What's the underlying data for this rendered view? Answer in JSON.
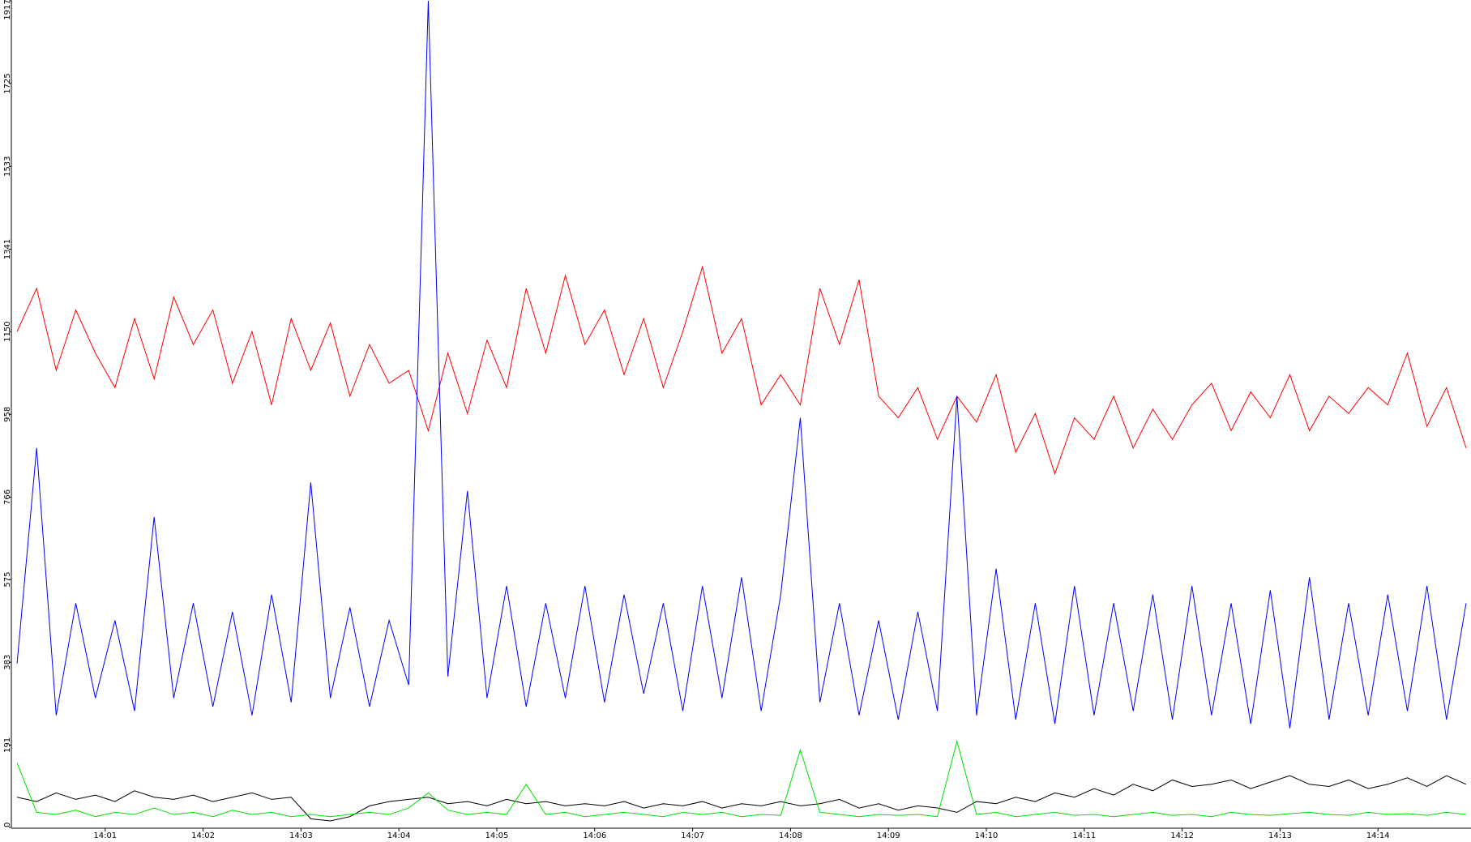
{
  "chart_data": {
    "type": "line",
    "x": [
      0.1,
      0.3,
      0.5,
      0.7,
      0.9,
      1.1,
      1.3,
      1.5,
      1.7,
      1.9,
      2.1,
      2.3,
      2.5,
      2.7,
      2.9,
      3.1,
      3.3,
      3.5,
      3.7,
      3.9,
      4.1,
      4.3,
      4.5,
      4.7,
      4.9,
      5.1,
      5.3,
      5.5,
      5.7,
      5.9,
      6.1,
      6.3,
      6.5,
      6.7,
      6.9,
      7.1,
      7.3,
      7.5,
      7.7,
      7.9,
      8.1,
      8.3,
      8.5,
      8.7,
      8.9,
      9.1,
      9.3,
      9.5,
      9.7,
      9.9,
      10.1,
      10.3,
      10.5,
      10.7,
      10.9,
      11.1,
      11.3,
      11.5,
      11.7,
      11.9,
      12.1,
      12.3,
      12.5,
      12.7,
      12.9,
      13.1,
      13.3,
      13.5,
      13.7,
      13.9,
      14.1,
      14.3,
      14.5,
      14.7,
      14.9
    ],
    "series": [
      {
        "color": "#ff0000",
        "values": [
          1150,
          1250,
          1060,
          1200,
          1100,
          1020,
          1180,
          1040,
          1230,
          1120,
          1200,
          1030,
          1150,
          980,
          1180,
          1060,
          1170,
          1000,
          1120,
          1030,
          1060,
          920,
          1100,
          960,
          1130,
          1020,
          1250,
          1100,
          1280,
          1120,
          1200,
          1050,
          1180,
          1020,
          1150,
          1300,
          1100,
          1180,
          980,
          1050,
          980,
          1250,
          1120,
          1270,
          1000,
          950,
          1020,
          900,
          1000,
          940,
          1050,
          870,
          960,
          820,
          950,
          900,
          1000,
          880,
          970,
          900,
          980,
          1030,
          920,
          1010,
          950,
          1050,
          920,
          1000,
          960,
          1020,
          980,
          1100,
          930,
          1020,
          880
        ]
      },
      {
        "color": "#0000ff",
        "values": [
          380,
          880,
          260,
          520,
          300,
          480,
          270,
          720,
          300,
          520,
          280,
          500,
          260,
          540,
          290,
          800,
          300,
          510,
          280,
          480,
          330,
          1917,
          350,
          780,
          300,
          560,
          280,
          520,
          300,
          560,
          290,
          540,
          310,
          520,
          270,
          560,
          300,
          580,
          270,
          540,
          950,
          290,
          520,
          260,
          480,
          250,
          500,
          270,
          1000,
          260,
          600,
          250,
          520,
          240,
          560,
          260,
          520,
          270,
          540,
          250,
          560,
          260,
          520,
          240,
          550,
          230,
          580,
          250,
          520,
          260,
          540,
          270,
          560,
          250,
          520
        ]
      },
      {
        "color": "#000000",
        "values": [
          70,
          60,
          80,
          65,
          75,
          60,
          85,
          70,
          65,
          75,
          60,
          70,
          80,
          65,
          70,
          20,
          15,
          25,
          50,
          60,
          65,
          70,
          55,
          60,
          50,
          65,
          55,
          60,
          50,
          55,
          50,
          60,
          45,
          55,
          50,
          60,
          45,
          55,
          50,
          60,
          50,
          55,
          65,
          45,
          55,
          40,
          50,
          45,
          35,
          60,
          55,
          70,
          60,
          80,
          70,
          90,
          75,
          100,
          85,
          110,
          95,
          100,
          110,
          90,
          105,
          120,
          100,
          95,
          110,
          90,
          100,
          115,
          95,
          120,
          100
        ]
      },
      {
        "color": "#00e000",
        "values": [
          150,
          35,
          30,
          40,
          25,
          35,
          30,
          45,
          30,
          35,
          25,
          40,
          30,
          35,
          25,
          30,
          25,
          30,
          35,
          30,
          45,
          80,
          40,
          30,
          35,
          30,
          100,
          30,
          35,
          25,
          30,
          35,
          30,
          25,
          35,
          30,
          35,
          25,
          30,
          28,
          180,
          35,
          30,
          25,
          30,
          28,
          30,
          25,
          200,
          30,
          35,
          25,
          30,
          35,
          28,
          30,
          25,
          30,
          35,
          28,
          30,
          25,
          35,
          30,
          28,
          32,
          35,
          30,
          28,
          35,
          30,
          32,
          28,
          35,
          30
        ]
      }
    ],
    "xlim": [
      0.05,
      14.95
    ],
    "xticks": [
      {
        "value": 1,
        "label": "14:01"
      },
      {
        "value": 2,
        "label": "14:02"
      },
      {
        "value": 3,
        "label": "14:03"
      },
      {
        "value": 4,
        "label": "14:04"
      },
      {
        "value": 5,
        "label": "14:05"
      },
      {
        "value": 6,
        "label": "14:06"
      },
      {
        "value": 7,
        "label": "14:07"
      },
      {
        "value": 8,
        "label": "14:08"
      },
      {
        "value": 9,
        "label": "14:09"
      },
      {
        "value": 10,
        "label": "14:10"
      },
      {
        "value": 11,
        "label": "14:11"
      },
      {
        "value": 12,
        "label": "14:12"
      },
      {
        "value": 13,
        "label": "14:13"
      },
      {
        "value": 14,
        "label": "14:14"
      }
    ],
    "ylim": [
      0,
      1917
    ],
    "yticks": [
      0,
      191,
      383,
      575,
      766,
      958,
      1150,
      1341,
      1533,
      1725,
      1917
    ]
  }
}
